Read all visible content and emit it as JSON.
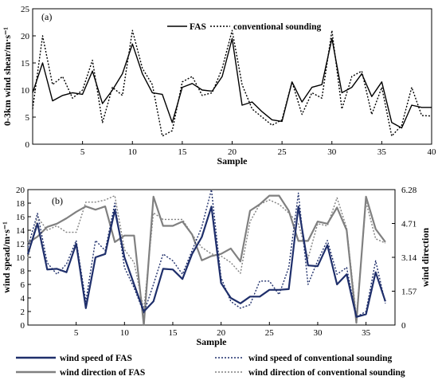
{
  "chart_data": [
    {
      "type": "line",
      "panel_label": "(a)",
      "xlabel": "Sample",
      "ylabel": "0-3km wind shear/m·s⁻¹",
      "xlim": [
        0,
        40
      ],
      "ylim": [
        0,
        25
      ],
      "x_ticks": [
        5,
        10,
        15,
        20,
        25,
        30,
        35,
        40
      ],
      "y_ticks": [
        0,
        5,
        10,
        15,
        20,
        25
      ],
      "grid": false,
      "legend_position": "top-right",
      "x": [
        0,
        1,
        2,
        3,
        4,
        5,
        6,
        7,
        8,
        9,
        10,
        11,
        12,
        13,
        14,
        15,
        16,
        17,
        18,
        19,
        20,
        21,
        22,
        23,
        24,
        25,
        26,
        27,
        28,
        29,
        30,
        31,
        32,
        33,
        34,
        35,
        36,
        37,
        38,
        39,
        40
      ],
      "series": [
        {
          "name": "FAS",
          "style": "solid",
          "color": "#000000",
          "values": [
            9.5,
            15,
            8,
            9,
            9.5,
            9.2,
            13.5,
            7.5,
            10,
            13,
            18.5,
            13,
            9.5,
            9.2,
            4,
            10.5,
            11.2,
            10,
            9.8,
            12.5,
            19.5,
            7.2,
            7.8,
            6,
            4.5,
            4.2,
            11.5,
            7.8,
            10.5,
            11,
            19.5,
            9.5,
            10.5,
            13,
            8.8,
            11.5,
            4,
            3,
            7.2,
            6.8,
            6.8
          ]
        },
        {
          "name": "conventional sounding",
          "style": "dotted",
          "color": "#000000",
          "values": [
            6.5,
            20,
            11,
            12.5,
            8.5,
            10,
            15.5,
            4,
            10.5,
            9,
            21,
            14,
            11,
            1.5,
            2.5,
            11.5,
            12.5,
            9,
            9.5,
            14,
            21,
            11,
            6.5,
            5,
            3.5,
            4.5,
            11.5,
            5.5,
            9.5,
            8.5,
            21,
            6.5,
            12.5,
            13.5,
            5.5,
            10.5,
            1.5,
            3.5,
            10.5,
            5.3,
            5.2
          ]
        }
      ]
    },
    {
      "type": "line",
      "panel_label": "(b)",
      "xlabel": "Sample",
      "ylabel": "wind spead/m·s⁻¹",
      "y2label": "wind direction",
      "xlim": [
        0,
        38
      ],
      "ylim": [
        0,
        20
      ],
      "y2lim": [
        0,
        6.28
      ],
      "x_ticks": [
        5,
        10,
        15,
        20,
        25,
        30,
        35
      ],
      "y_ticks": [
        0,
        2,
        4,
        6,
        8,
        10,
        12,
        14,
        16,
        18,
        20
      ],
      "y2_ticks": [
        "0",
        "1.57",
        "3.14",
        "4.71",
        "6.28"
      ],
      "grid": false,
      "legend_position": "bottom",
      "x": [
        0,
        1,
        2,
        3,
        4,
        5,
        6,
        7,
        8,
        9,
        10,
        11,
        12,
        13,
        14,
        15,
        16,
        17,
        18,
        19,
        20,
        21,
        22,
        23,
        24,
        25,
        26,
        27,
        28,
        29,
        30,
        31,
        32,
        33,
        34,
        35,
        36,
        37
      ],
      "series": [
        {
          "name": "wind speed of FAS",
          "axis": "left",
          "style": "solid",
          "color": "#1f2f6b",
          "values": [
            10.5,
            15,
            8.2,
            8.3,
            7.8,
            12,
            2.5,
            10,
            10.5,
            17,
            10,
            6,
            2,
            3.5,
            8.3,
            8.2,
            6.8,
            10.5,
            13,
            17.5,
            6.2,
            4,
            3.2,
            4.2,
            4.2,
            5.2,
            5.2,
            5.3,
            17.5,
            8.8,
            8.7,
            11.8,
            6,
            7.5,
            1.2,
            1.6,
            7.8,
            3.5
          ]
        },
        {
          "name": "wind direction of FAS",
          "axis": "right",
          "style": "solid",
          "color": "#808080",
          "values": [
            3.8,
            4.1,
            4.55,
            4.7,
            4.95,
            5.25,
            5.5,
            5.35,
            5.5,
            3.85,
            4.15,
            4.15,
            0,
            5.95,
            4.6,
            4.6,
            4.8,
            4.2,
            3.0,
            3.2,
            3.3,
            3.55,
            2.95,
            5.3,
            5.6,
            6.0,
            6.0,
            5.3,
            3.9,
            3.9,
            4.8,
            4.7,
            5.45,
            4.4,
            0.1,
            5.95,
            4.45,
            3.85
          ]
        },
        {
          "name": "wind speed of conventional sounding",
          "axis": "left",
          "style": "dotted",
          "color": "#1f2f6b",
          "values": [
            11.5,
            16.5,
            9.2,
            7.5,
            9,
            12.5,
            3.5,
            12.5,
            11,
            18,
            8.5,
            5.5,
            1.8,
            6,
            10.5,
            9.5,
            7.5,
            11,
            14.5,
            20,
            7,
            3.5,
            2.5,
            3,
            6.5,
            6.5,
            4.5,
            8.5,
            19.5,
            6,
            9.5,
            12.5,
            7.5,
            8.5,
            1.2,
            2,
            9.5,
            3.2
          ]
        },
        {
          "name": "wind direction of conventional sounding",
          "axis": "right",
          "style": "dotted",
          "color": "#808080",
          "values": [
            3.1,
            5.0,
            4.4,
            4.6,
            4.3,
            4.3,
            5.7,
            5.7,
            5.8,
            6.0,
            3.5,
            2.9,
            0.7,
            5.2,
            4.9,
            4.9,
            4.9,
            4.2,
            3.6,
            3.3,
            3.2,
            2.9,
            2.4,
            4.8,
            5.6,
            5.8,
            5.6,
            5.2,
            4.7,
            3.1,
            4.7,
            4.6,
            5.9,
            4.5,
            0.4,
            5.7,
            4.0,
            3.8
          ]
        }
      ]
    }
  ]
}
